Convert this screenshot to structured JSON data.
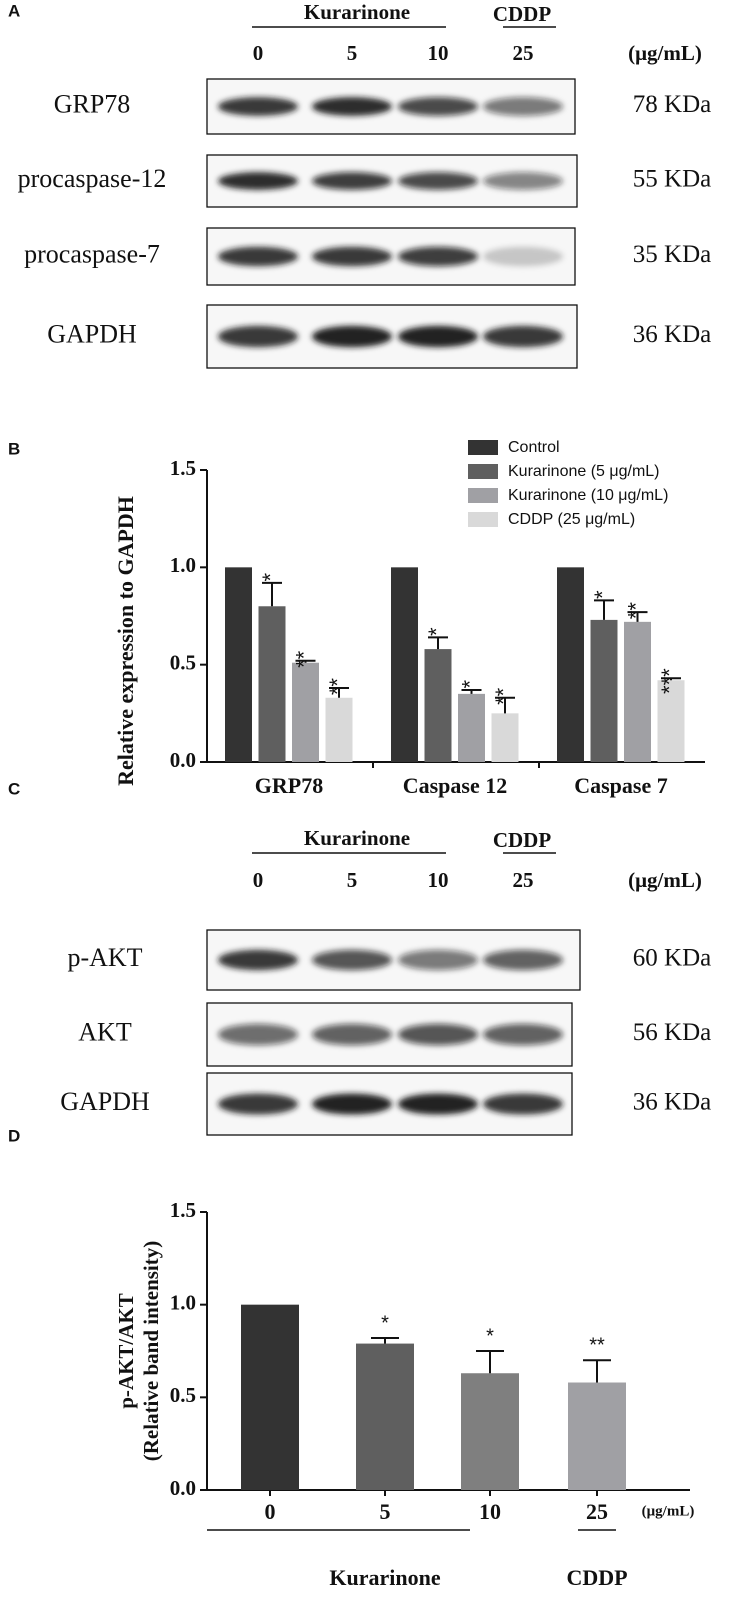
{
  "panel_a": {
    "letter": "A",
    "group_label": "Kurarinone",
    "cddp_label": "CDDP",
    "lanes": [
      "0",
      "5",
      "10",
      "25"
    ],
    "unit": "(μg/mL)",
    "rows": [
      {
        "label": "GRP78",
        "size": "78 KDa"
      },
      {
        "label": "procaspase-12",
        "size": "55 KDa"
      },
      {
        "label": "procaspase-7",
        "size": "35 KDa"
      },
      {
        "label": "GAPDH",
        "size": "36 KDa"
      }
    ]
  },
  "panel_c": {
    "letter": "C",
    "group_label": "Kurarinone",
    "cddp_label": "CDDP",
    "lanes": [
      "0",
      "5",
      "10",
      "25"
    ],
    "unit": "(μg/mL)",
    "rows": [
      {
        "label": "p-AKT",
        "size": "60 KDa"
      },
      {
        "label": "AKT",
        "size": "56 KDa"
      },
      {
        "label": "GAPDH",
        "size": "36 KDa"
      }
    ]
  },
  "chart_data": [
    {
      "type": "bar",
      "panel_label": "B",
      "y_label": "Relative expression to GAPDH",
      "categories": [
        "GRP78",
        "Caspase 12",
        "Caspase 7"
      ],
      "series": [
        {
          "name": "Control",
          "color": "#333333",
          "values": [
            1,
            1,
            1
          ]
        },
        {
          "name": "Kurarinone (5 μg/mL)",
          "color": "#5f5f5f",
          "values": [
            0.8,
            0.58,
            0.73
          ],
          "errors": [
            0.12,
            0.06,
            0.1
          ],
          "sig_labels": [
            "*",
            "*",
            "*"
          ]
        },
        {
          "name": "Kurarinone (10 μg/mL)",
          "color": "#a0a0a4",
          "values": [
            0.51,
            0.35,
            0.72
          ],
          "errors": [
            0.01,
            0.02,
            0.05
          ],
          "sig_labels": [
            "**",
            "*",
            "**"
          ]
        },
        {
          "name": "CDDP (25 μg/mL)",
          "color": "#d9d9d9",
          "values": [
            0.33,
            0.25,
            0.42
          ],
          "errors": [
            0.05,
            0.08,
            0.01
          ],
          "sig_labels": [
            "**",
            "**",
            "***"
          ]
        }
      ],
      "ylim": [
        0,
        1.5
      ],
      "yticks": [
        {
          "value": 0,
          "label": "0.0"
        },
        {
          "value": 0.5,
          "label": "0.5"
        },
        {
          "value": 1,
          "label": "1.0"
        },
        {
          "value": 1.5,
          "label": "1.5"
        }
      ],
      "legend": "top-right"
    },
    {
      "type": "bar",
      "panel_label": "D",
      "y_label": [
        "p-AKT/AKT",
        "(Relative band intensity)"
      ],
      "categories": [
        "0",
        "5",
        "10",
        "25"
      ],
      "values": [
        1,
        0.79,
        0.63,
        0.58
      ],
      "errors": [
        null,
        0.03,
        0.12,
        0.12
      ],
      "colors": [
        "#333333",
        "#5f5f5f",
        "#7f7f7f",
        "#a0a0a4"
      ],
      "sig_labels": [
        null,
        "*",
        "*",
        "**"
      ],
      "unit": "(μg/mL)",
      "group_label": "Kurarinone",
      "cddp_label": "CDDP",
      "ylim": [
        0,
        1.5
      ],
      "yticks": [
        {
          "value": 0,
          "label": "0.0"
        },
        {
          "value": 0.5,
          "label": "0.5"
        },
        {
          "value": 1,
          "label": "1.0"
        },
        {
          "value": 1.5,
          "label": "1.5"
        }
      ]
    }
  ]
}
